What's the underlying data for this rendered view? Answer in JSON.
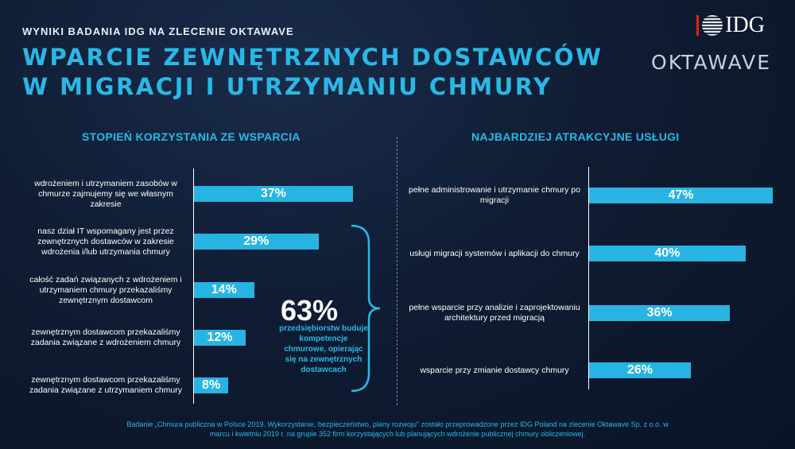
{
  "supertitle": "WYNIKI BADANIA IDG NA ZLECENIE OKTAWAVE",
  "title": {
    "line1": "WPARCIE ZEWNĘTRZNYCH DOSTAWCÓW",
    "line2": "W MIGRACJI I UTRZYMANIU CHMURY"
  },
  "logos": {
    "idg": "IDG",
    "oktawave": "OKTAWAVE"
  },
  "colors": {
    "accent": "#2ab8e6",
    "bar": "#27b4e2",
    "background": "#0f1c33"
  },
  "chart_data": [
    {
      "type": "bar",
      "orientation": "horizontal",
      "title": "STOPIEŃ KORZYSTANIA ZE WSPARCIA",
      "unit": "%",
      "xlim": [
        0,
        100
      ],
      "categories": [
        "wdrożeniem i utrzymaniem zasobów w chmurze zajmujemy się we własnym zakresie",
        "nasz dział IT wspomagany jest przez zewnętrznych dostawców w zakresie wdrożenia i/lub utrzymania chmury",
        "całość zadań związanych z wdrożeniem i utrzymaniem chmury przekazaliśmy zewnętrznym dostawcom",
        "zewnętrznym dostawcom przekazaliśmy zadania związane z wdrożeniem chmury",
        "zewnętrznym dostawcom przekazaliśmy zadania związane z utrzymaniem chmury"
      ],
      "values": [
        37,
        29,
        14,
        12,
        8
      ],
      "value_labels": [
        "37%",
        "29%",
        "14%",
        "12%",
        "8%"
      ],
      "annotation": {
        "value": "63%",
        "text": "przedsiębiorstw buduje kompetencje chmurowe, opierając się na zewnętrznych dostawcach"
      }
    },
    {
      "type": "bar",
      "orientation": "horizontal",
      "title": "NAJBARDZIEJ ATRAKCYJNE USŁUGI",
      "unit": "%",
      "xlim": [
        0,
        100
      ],
      "categories": [
        "pełne administrowanie i utrzymanie chmury po migracji",
        "usługi migracji systemów i aplikacji do chmury",
        "pełne wsparcie przy analizie i zaprojektowaniu architektury przed migracją",
        "wsparcie przy zmianie dostawcy chmury"
      ],
      "values": [
        47,
        40,
        36,
        26
      ],
      "value_labels": [
        "47%",
        "40%",
        "36%",
        "26%"
      ]
    }
  ],
  "footnote": "Badanie „Chmura publiczna w Polsce 2019. Wykorzystanie, bezpieczeństwo, plany rozwoju” zostało przeprowadzone przez IDG Poland na zlecenie Oktawave Sp. z o.o. w marcu i kwietniu 2019 r. na grupie 352 firm korzystających lub planujących wdrożenie publicznej chmury obliczeniowej."
}
